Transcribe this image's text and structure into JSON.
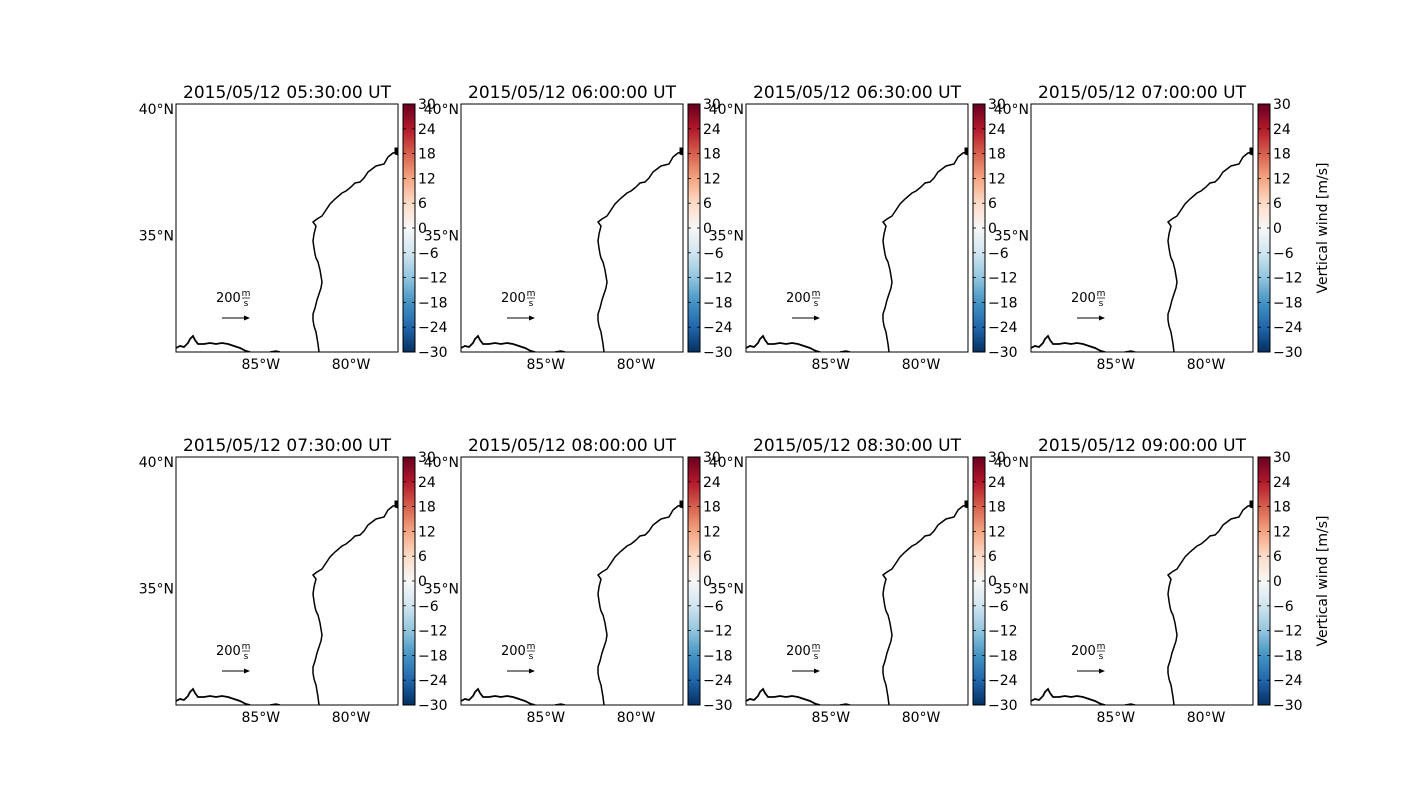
{
  "chart_data": {
    "type": "map",
    "colorbar": {
      "label": "Vertical wind [m/s]",
      "ticks": [
        -30,
        -24,
        -18,
        -12,
        -6,
        0,
        6,
        12,
        18,
        24,
        30
      ],
      "range": [
        -30,
        30
      ],
      "colormap": "RdBu_r",
      "colors": [
        "#053061",
        "#2166ac",
        "#4393c3",
        "#92c5de",
        "#d1e5f0",
        "#f7f7f7",
        "#fddbc7",
        "#f4a582",
        "#d6604d",
        "#b2182b",
        "#67001f"
      ]
    },
    "lon_ticks": [
      {
        "value": -85,
        "label": "85°W"
      },
      {
        "value": -80,
        "label": "80°W"
      }
    ],
    "lat_ticks": [
      {
        "value": 40,
        "label": "40°N"
      },
      {
        "value": 35,
        "label": "35°N"
      }
    ],
    "reference_vector": {
      "value": 200,
      "unit_num": "m",
      "unit_den": "s"
    },
    "panels": [
      {
        "title": "2015/05/12 05:30:00 UT"
      },
      {
        "title": "2015/05/12 06:00:00 UT"
      },
      {
        "title": "2015/05/12 06:30:00 UT"
      },
      {
        "title": "2015/05/12 07:00:00 UT"
      },
      {
        "title": "2015/05/12 07:30:00 UT"
      },
      {
        "title": "2015/05/12 08:00:00 UT"
      },
      {
        "title": "2015/05/12 08:30:00 UT"
      },
      {
        "title": "2015/05/12 09:00:00 UT"
      }
    ]
  }
}
